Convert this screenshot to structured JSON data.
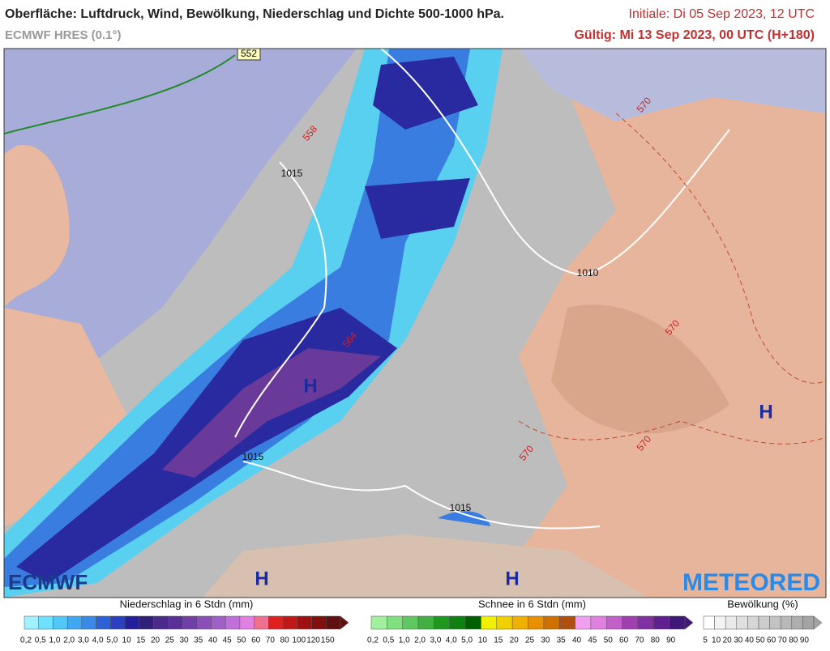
{
  "header": {
    "title": "Oberfläche: Luftdruck, Wind, Bewölkung, Niederschlag und Dichte 500-1000 hPa.",
    "model": "ECMWF HRES (0.1°)",
    "init": "Initiale: Di 05 Sep 2023, 12 UTC",
    "valid": "Gültig: Mi 13 Sep 2023, 00 UTC (H+180)"
  },
  "map": {
    "pressure_labels": [
      "1015",
      "1010",
      "1015",
      "1015"
    ],
    "thickness_labels": [
      "552",
      "558",
      "570",
      "570",
      "564",
      "570",
      "570"
    ],
    "highs": [
      "H",
      "H",
      "H",
      "H"
    ]
  },
  "logos": {
    "left": "ECMWF",
    "right": "METEORED"
  },
  "legends": [
    {
      "title": "Niederschlag in 6 Stdn (mm)",
      "ticks": [
        "0,2",
        "0,5",
        "1,0",
        "2,0",
        "3,0",
        "4,0",
        "5,0",
        "10",
        "15",
        "20",
        "25",
        "30",
        "35",
        "40",
        "45",
        "50",
        "60",
        "70",
        "80",
        "100",
        "120",
        "150"
      ],
      "colors": [
        "#a0f0ff",
        "#70e0ff",
        "#50c8f8",
        "#40a8f0",
        "#3a88e8",
        "#3060d8",
        "#2a40c0",
        "#22209a",
        "#30207a",
        "#4a2a8a",
        "#5a3098",
        "#7040a8",
        "#8a50b8",
        "#a060c8",
        "#c070d8",
        "#e080e0",
        "#f07090",
        "#e02020",
        "#c01818",
        "#a01010",
        "#801010",
        "#601010"
      ]
    },
    {
      "title": "Schnee in 6 Stdn (mm)",
      "ticks": [
        "0,2",
        "0,5",
        "1,0",
        "2,0",
        "3,0",
        "4,0",
        "5,0",
        "10",
        "15",
        "20",
        "25",
        "30",
        "35",
        "40",
        "45",
        "50",
        "60",
        "70",
        "80",
        "90"
      ],
      "colors": [
        "#a0f0a0",
        "#80e080",
        "#60c860",
        "#40b040",
        "#209820",
        "#108010",
        "#006000",
        "#f0f000",
        "#f0d000",
        "#f0b000",
        "#e89000",
        "#d07000",
        "#b05010",
        "#f0a0f0",
        "#e080e0",
        "#c060c8",
        "#a040b0",
        "#8030a0",
        "#602090",
        "#401878"
      ]
    },
    {
      "title": "Bewölkung (%)",
      "ticks": [
        "5",
        "10",
        "20",
        "30",
        "40",
        "50",
        "60",
        "70",
        "80",
        "90"
      ],
      "colors": [
        "#ffffff",
        "#f4f4f4",
        "#eaeaea",
        "#e0e0e0",
        "#d6d6d6",
        "#cccccc",
        "#c2c2c2",
        "#b8b8b8",
        "#aeaeae",
        "#a4a4a4"
      ]
    }
  ]
}
